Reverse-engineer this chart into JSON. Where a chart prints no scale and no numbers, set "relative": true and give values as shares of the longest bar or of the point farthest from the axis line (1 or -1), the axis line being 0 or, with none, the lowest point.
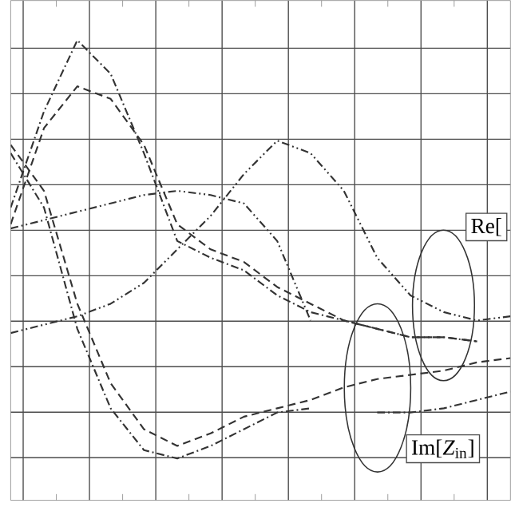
{
  "chart_data": {
    "type": "line",
    "relative": true,
    "grid": true,
    "tick_labels": false,
    "marker": "none",
    "categories": [
      null,
      null,
      null,
      null,
      null,
      null,
      null,
      null,
      null,
      null,
      null,
      null,
      null,
      null,
      null,
      null
    ],
    "series": [
      {
        "color": "#333333",
        "line_style": "dashdot",
        "values": [
          0.6,
          0.83,
          1.0,
          0.92,
          0.73,
          0.52,
          0.48,
          0.45,
          0.39,
          0.35,
          0.33,
          0.31,
          0.29,
          0.29,
          0.28,
          null
        ]
      },
      {
        "color": "#333333",
        "line_style": "dashed",
        "values": [
          0.56,
          0.79,
          0.89,
          0.86,
          0.75,
          0.56,
          0.5,
          0.47,
          0.41,
          0.37,
          0.33,
          0.31,
          0.29,
          0.29,
          0.28,
          null
        ]
      },
      {
        "color": "#333333",
        "line_style": "dashed",
        "values": [
          0.75,
          0.64,
          0.37,
          0.18,
          0.07,
          0.03,
          0.06,
          0.1,
          0.12,
          0.14,
          0.17,
          0.19,
          0.2,
          0.21,
          0.23,
          0.24
        ]
      },
      {
        "color": "#333333",
        "line_style": "dashdot",
        "values": [
          0.73,
          0.6,
          0.31,
          0.12,
          0.02,
          0,
          0.03,
          0.07,
          0.11,
          0.12,
          null,
          0.11,
          0.11,
          0.12,
          0.14,
          0.16
        ]
      },
      {
        "color": "#333333",
        "line_style": "dashdotdot",
        "values": [
          0.55,
          0.57,
          0.59,
          0.61,
          0.63,
          0.64,
          0.63,
          0.61,
          0.52,
          0.33,
          null,
          null,
          null,
          null,
          null,
          null
        ]
      },
      {
        "color": "#333333",
        "line_style": "dashdotdot",
        "values": [
          0.3,
          0.32,
          0.34,
          0.37,
          0.42,
          0.5,
          0.58,
          0.68,
          0.76,
          0.73,
          0.64,
          0.48,
          0.39,
          0.35,
          0.33,
          0.34
        ]
      }
    ],
    "annotations": [
      "Re[",
      "Im[*Z*$_{in}$]"
    ]
  }
}
